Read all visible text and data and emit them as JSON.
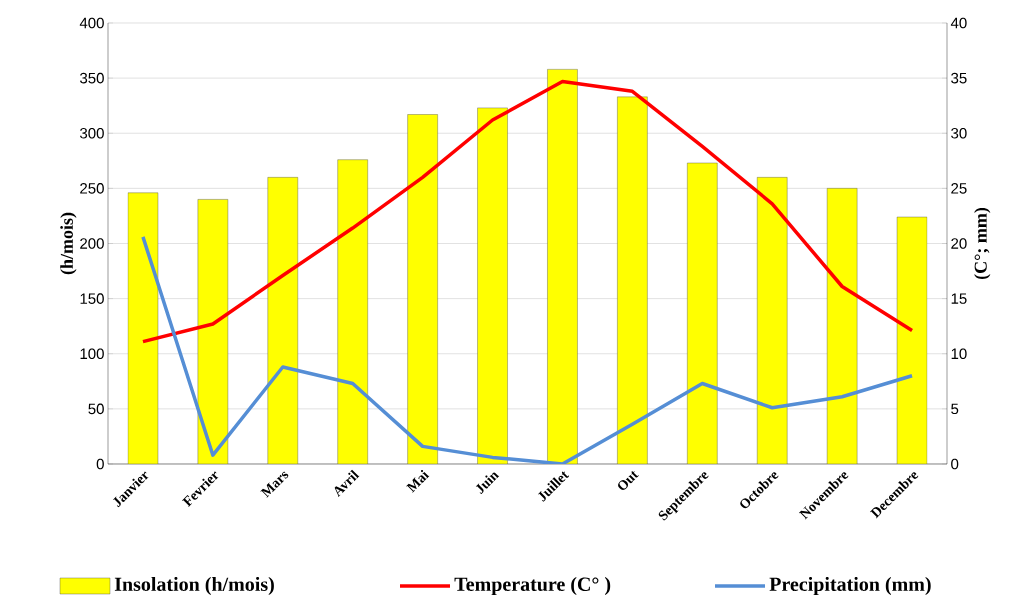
{
  "chart_data": {
    "type": "bar",
    "categories": [
      "Janvier",
      "Fevrier",
      "Mars",
      "Avril",
      "Mai",
      "Juin",
      "Juillet",
      "Out",
      "Septembre",
      "Octobre",
      "Novembre",
      "Decembre"
    ],
    "ylabel": "(h/mois)",
    "y2label": "(C°; mm)",
    "ylim": [
      0,
      400
    ],
    "yticks": [
      0,
      50,
      100,
      150,
      200,
      250,
      300,
      350,
      400
    ],
    "y2lim": [
      0,
      40
    ],
    "y2ticks": [
      0,
      5,
      10,
      15,
      20,
      25,
      30,
      35,
      40
    ],
    "grid": "y",
    "legend": "bottom",
    "series": [
      {
        "name": "Insolation (h/mois)",
        "color": "#ffff00",
        "values": [
          246,
          240,
          260,
          276,
          317,
          323,
          358,
          333,
          273,
          260,
          250,
          224
        ]
      },
      {
        "name": "Temperature (C° )",
        "type": "line",
        "axis": "y2",
        "color": "#ff0000",
        "values": [
          11.1,
          12.7,
          17.1,
          21.4,
          26.0,
          31.2,
          34.7,
          33.8,
          28.8,
          23.6,
          16.1,
          12.1
        ]
      },
      {
        "name": "Precipitation (mm)",
        "type": "line",
        "axis": "y2",
        "color": "#558ed5",
        "values": [
          20.6,
          0.8,
          8.8,
          7.3,
          1.6,
          0.6,
          0.0,
          3.6,
          7.3,
          5.1,
          6.1,
          8.0
        ]
      }
    ]
  }
}
